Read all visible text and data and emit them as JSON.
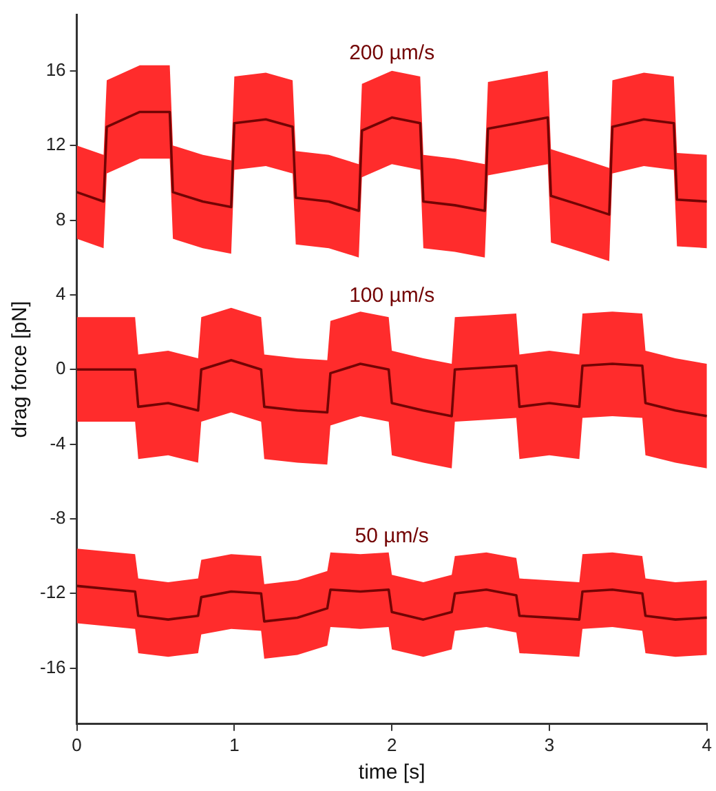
{
  "chart_data": {
    "type": "line",
    "xlabel": "time [s]",
    "ylabel": "drag force [pN]",
    "xlim": [
      0,
      4
    ],
    "ylim": [
      -19,
      19
    ],
    "xticks": [
      0,
      1,
      2,
      3,
      4
    ],
    "yticks": [
      -16,
      -12,
      -8,
      -4,
      0,
      4,
      8,
      12,
      16
    ],
    "marker": "none",
    "line_style": "solid",
    "series": [
      {
        "name": "200 µm/s",
        "color": "#730404",
        "x": [
          0,
          0.17,
          0.19,
          0.4,
          0.59,
          0.61,
          0.8,
          0.98,
          1.0,
          1.2,
          1.37,
          1.39,
          1.6,
          1.79,
          1.81,
          2.0,
          2.18,
          2.2,
          2.4,
          2.59,
          2.61,
          2.8,
          2.99,
          3.01,
          3.2,
          3.38,
          3.4,
          3.6,
          3.79,
          3.81,
          4.0
        ],
        "values": [
          9.5,
          9,
          13,
          13.8,
          13.8,
          9.5,
          9,
          8.7,
          13.2,
          13.4,
          13,
          9.2,
          9,
          8.5,
          12.8,
          13.5,
          13.2,
          9,
          8.8,
          8.5,
          12.9,
          13.2,
          13.5,
          9.3,
          8.8,
          8.3,
          13,
          13.4,
          13.2,
          9.1,
          9
        ],
        "lower": [
          7,
          6.5,
          10.5,
          11.3,
          11.3,
          7,
          6.5,
          6.2,
          10.7,
          10.9,
          10.5,
          6.7,
          6.5,
          6,
          10.3,
          11,
          10.7,
          6.5,
          6.3,
          6,
          10.4,
          10.7,
          11,
          6.8,
          6.3,
          5.8,
          10.5,
          10.9,
          10.7,
          6.6,
          6.5
        ],
        "upper": [
          12,
          11.5,
          15.5,
          16.3,
          16.3,
          12,
          11.5,
          11.2,
          15.7,
          15.9,
          15.5,
          11.7,
          11.5,
          11,
          15.3,
          16,
          15.7,
          11.5,
          11.3,
          11,
          15.4,
          15.7,
          16,
          11.8,
          11.3,
          10.8,
          15.5,
          15.9,
          15.7,
          11.6,
          11.5
        ]
      },
      {
        "name": "100 µm/s",
        "color": "#730404",
        "x": [
          0,
          0.37,
          0.39,
          0.58,
          0.77,
          0.79,
          0.98,
          1.17,
          1.19,
          1.4,
          1.59,
          1.61,
          1.8,
          1.98,
          2.0,
          2.2,
          2.38,
          2.4,
          2.6,
          2.79,
          2.81,
          3.0,
          3.19,
          3.21,
          3.4,
          3.59,
          3.61,
          3.8,
          4.0
        ],
        "values": [
          0,
          0,
          -2,
          -1.8,
          -2.2,
          0,
          0.5,
          0,
          -2,
          -2.2,
          -2.3,
          -0.2,
          0.3,
          0,
          -1.8,
          -2.2,
          -2.5,
          0,
          0.1,
          0.2,
          -2,
          -1.8,
          -2,
          0.2,
          0.3,
          0.2,
          -1.8,
          -2.2,
          -2.5
        ],
        "lower": [
          -2.8,
          -2.8,
          -4.8,
          -4.6,
          -5,
          -2.8,
          -2.3,
          -2.8,
          -4.8,
          -5,
          -5.1,
          -3,
          -2.5,
          -2.8,
          -4.6,
          -5,
          -5.3,
          -2.8,
          -2.7,
          -2.6,
          -4.8,
          -4.6,
          -4.8,
          -2.6,
          -2.5,
          -2.6,
          -4.6,
          -5,
          -5.3
        ],
        "upper": [
          2.8,
          2.8,
          0.8,
          1,
          0.6,
          2.8,
          3.3,
          2.8,
          0.8,
          0.6,
          0.5,
          2.6,
          3.1,
          2.8,
          1,
          0.6,
          0.3,
          2.8,
          2.9,
          3,
          0.8,
          1,
          0.8,
          3,
          3.1,
          3,
          1,
          0.6,
          0.3
        ]
      },
      {
        "name": "50 µm/s",
        "color": "#730404",
        "x": [
          0,
          0.37,
          0.39,
          0.58,
          0.77,
          0.79,
          0.98,
          1.17,
          1.19,
          1.4,
          1.59,
          1.61,
          1.8,
          1.98,
          2.0,
          2.2,
          2.38,
          2.4,
          2.6,
          2.79,
          2.81,
          3.0,
          3.19,
          3.21,
          3.4,
          3.59,
          3.61,
          3.8,
          4.0
        ],
        "values": [
          -11.6,
          -11.9,
          -13.2,
          -13.4,
          -13.2,
          -12.2,
          -11.9,
          -12,
          -13.5,
          -13.3,
          -12.8,
          -11.8,
          -11.9,
          -11.8,
          -13,
          -13.4,
          -13,
          -12,
          -11.8,
          -12.1,
          -13.2,
          -13.3,
          -13.4,
          -11.9,
          -11.8,
          -12,
          -13.2,
          -13.4,
          -13.3
        ],
        "lower": [
          -13.6,
          -13.9,
          -15.2,
          -15.4,
          -15.2,
          -14.2,
          -13.9,
          -14,
          -15.5,
          -15.3,
          -14.8,
          -13.8,
          -13.9,
          -13.8,
          -15,
          -15.4,
          -15,
          -14,
          -13.8,
          -14.1,
          -15.2,
          -15.3,
          -15.4,
          -13.9,
          -13.8,
          -14,
          -15.2,
          -15.4,
          -15.3
        ],
        "upper": [
          -9.6,
          -9.9,
          -11.2,
          -11.4,
          -11.2,
          -10.2,
          -9.9,
          -10,
          -11.5,
          -11.3,
          -10.8,
          -9.8,
          -9.9,
          -9.8,
          -11,
          -11.4,
          -11,
          -10,
          -9.8,
          -10.1,
          -11.2,
          -11.3,
          -11.4,
          -9.9,
          -9.8,
          -10,
          -11.2,
          -11.4,
          -11.3
        ]
      }
    ]
  }
}
